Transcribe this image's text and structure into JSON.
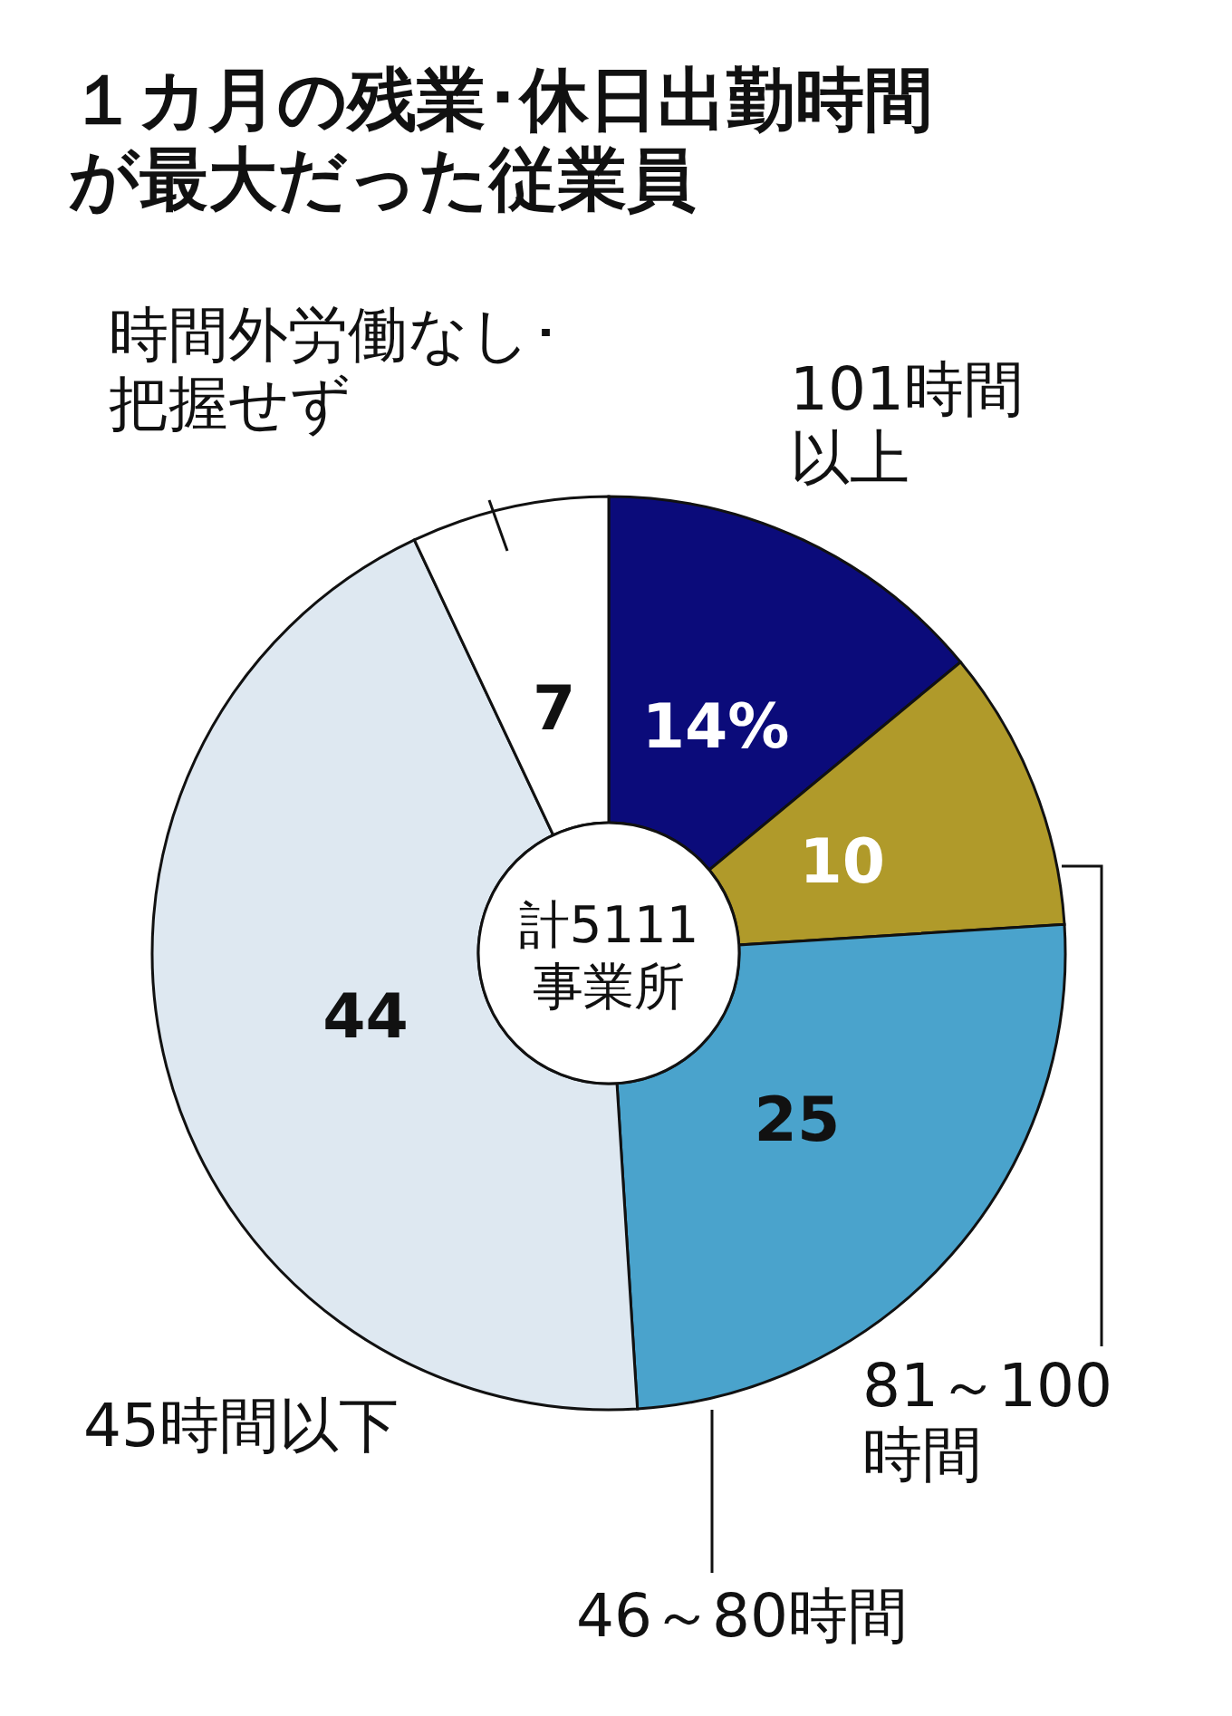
{
  "chart_data": {
    "type": "donut",
    "title": "１カ月の残業･休日出勤時間が最大だった従業員",
    "categories": [
      "101時間以上",
      "81～100時間",
      "46～80時間",
      "45時間以下",
      "時間外労働なし･把握せず"
    ],
    "values": [
      14,
      10,
      25,
      44,
      7
    ],
    "value_labels": [
      "14%",
      "10",
      "25",
      "44",
      "7"
    ],
    "colors": [
      "#0b0b7a",
      "#b09a2a",
      "#4aa3cc",
      "#dee8f1",
      "#ffffff"
    ],
    "annotations": [
      "計5111事業所"
    ]
  }
}
